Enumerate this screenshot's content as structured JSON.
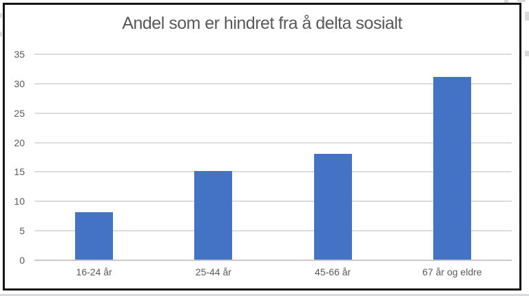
{
  "chart_data": {
    "type": "bar",
    "title": "Andel som er hindret fra å delta sosialt",
    "categories": [
      "16-24 år",
      "25-44 år",
      "45-66 år",
      "67 år og eldre"
    ],
    "values": [
      8,
      15,
      18,
      31
    ],
    "xlabel": "",
    "ylabel": "",
    "ylim": [
      0,
      35
    ],
    "yticks": [
      0,
      5,
      10,
      15,
      20,
      25,
      30,
      35
    ],
    "grid": true,
    "legend": "none",
    "colors": {
      "bar": "#4472C4",
      "gridline": "#DCDCDC",
      "axis_line": "#C9C9C9",
      "text": "#595959",
      "frame_border": "#141414",
      "background": "#FFFFFF",
      "bottom_strip": "#D4DBE3"
    }
  }
}
